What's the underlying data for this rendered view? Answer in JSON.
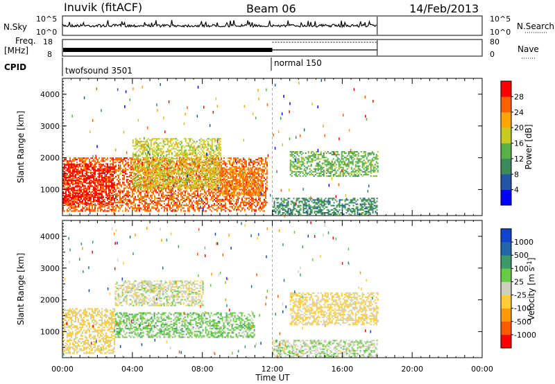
{
  "header": {
    "title": "Inuvik (fitACF)",
    "beam": "Beam 06",
    "date": "14/Feb/2013"
  },
  "nsky_panel": {
    "label": "N.Sky",
    "left_ticks": [
      "10^5",
      "10^0"
    ],
    "right_ticks": [
      "10^5",
      "10^0"
    ],
    "right_label": "N.Search"
  },
  "freq_panel": {
    "label_line1": "Freq.",
    "label_line2": "[MHz]",
    "left_ticks": [
      "18",
      "8"
    ],
    "right_ticks": [
      "80",
      "0"
    ],
    "right_label": "Nave"
  },
  "cpid_panel": {
    "label": "CPID",
    "modes": [
      {
        "name": "twofsound 3501",
        "start_hour": 0
      },
      {
        "name": "normal 150",
        "start_hour": 12
      }
    ]
  },
  "time_axis": {
    "label": "Time UT",
    "tick_labels": [
      "00:00",
      "04:00",
      "08:00",
      "12:00",
      "16:00",
      "20:00",
      "00:00"
    ],
    "range_hours": [
      0,
      24
    ],
    "data_end_hour": 18,
    "mode_change_hour": 12
  },
  "colors": {
    "power_scale": [
      "#0000ff",
      "#2255a6",
      "#3c8a5a",
      "#58b048",
      "#c8cc20",
      "#ffa500",
      "#ff6000",
      "#ff0000"
    ],
    "velocity_scale": [
      "#ff0000",
      "#ff5a00",
      "#ff9a00",
      "#ffcc33",
      "#cfcfbd",
      "#66cc44",
      "#3c9a66",
      "#2266aa",
      "#1144cc"
    ]
  },
  "chart_data": [
    {
      "type": "heatmap",
      "title": "",
      "xlabel": "Time UT",
      "ylabel": "Slant Range [km]",
      "xlim": [
        0,
        24
      ],
      "ylim": [
        180,
        4500
      ],
      "y_ticks": [
        1000,
        2000,
        3000,
        4000
      ],
      "colorbar": {
        "label": "Power [dB]",
        "tick_labels": [
          "4",
          "8",
          "12",
          "16",
          "20",
          "24",
          "28"
        ],
        "range": [
          0,
          32
        ]
      },
      "regions": [
        {
          "t": [
            0,
            11.7
          ],
          "r": [
            300,
            2000
          ],
          "value": 26
        },
        {
          "t": [
            0,
            3
          ],
          "r": [
            500,
            1800
          ],
          "value": 30
        },
        {
          "t": [
            4,
            9
          ],
          "r": [
            1000,
            2600
          ],
          "value": 18
        },
        {
          "t": [
            9,
            11.5
          ],
          "r": [
            800,
            1700
          ],
          "value": 24
        },
        {
          "t": [
            12,
            18
          ],
          "r": [
            200,
            700
          ],
          "value": 10
        },
        {
          "t": [
            13,
            18
          ],
          "r": [
            1400,
            2200
          ],
          "value": 14
        }
      ]
    },
    {
      "type": "heatmap",
      "title": "",
      "xlabel": "Time UT",
      "ylabel": "Slant Range [km]",
      "xlim": [
        0,
        24
      ],
      "ylim": [
        180,
        4500
      ],
      "y_ticks": [
        1000,
        2000,
        3000,
        4000
      ],
      "colorbar": {
        "label": "Velocity [m s^-1]",
        "tick_labels": [
          "1000",
          "500",
          "100",
          "25",
          "-25",
          "-100",
          "-500",
          "-1000"
        ],
        "range": [
          -1000,
          1000
        ]
      },
      "regions": [
        {
          "t": [
            0,
            3
          ],
          "r": [
            300,
            1700
          ],
          "value": -150
        },
        {
          "t": [
            3,
            11
          ],
          "r": [
            800,
            1600
          ],
          "value": 200
        },
        {
          "t": [
            3,
            8
          ],
          "r": [
            1800,
            2600
          ],
          "value": 0
        },
        {
          "t": [
            12,
            18
          ],
          "r": [
            200,
            700
          ],
          "value": 60
        },
        {
          "t": [
            13,
            18
          ],
          "r": [
            1200,
            2200
          ],
          "value": -150
        }
      ]
    }
  ]
}
